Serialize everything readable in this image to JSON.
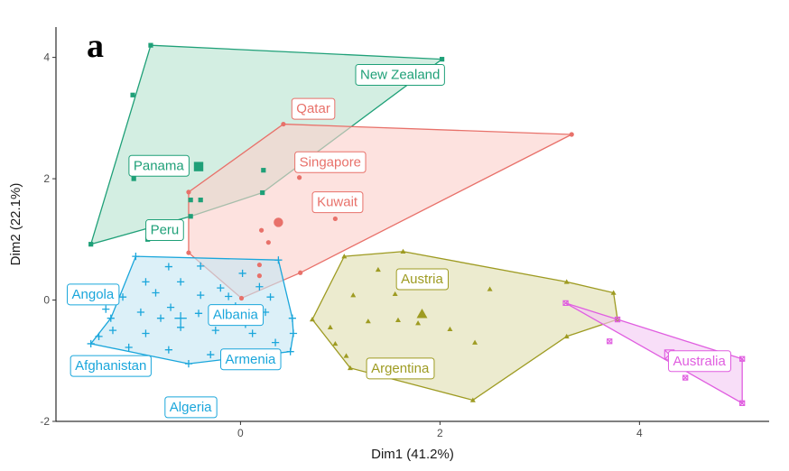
{
  "panel_letter": "a",
  "chart_data": {
    "type": "scatter",
    "title": "",
    "xlabel": "Dim1 (41.2%)",
    "ylabel": "Dim2 (22.1%)",
    "xlim": [
      -1.85,
      5.3
    ],
    "ylim": [
      -2.0,
      4.5
    ],
    "xticks": [
      0,
      2,
      4
    ],
    "yticks": [
      -2,
      0,
      2,
      4
    ],
    "grid": false,
    "legend": "none",
    "groups": [
      {
        "color": "#1fa078",
        "fill": "#b8e3d1",
        "marker": "square",
        "hull": [
          [
            -0.9,
            4.2
          ],
          [
            2.02,
            3.97
          ],
          [
            0.22,
            1.77
          ],
          [
            -0.5,
            1.38
          ],
          [
            -1.5,
            0.92
          ]
        ],
        "points": [
          [
            -0.9,
            4.2
          ],
          [
            2.02,
            3.97
          ],
          [
            -1.08,
            3.38
          ],
          [
            -1.07,
            2.0
          ],
          [
            -0.5,
            1.65
          ],
          [
            -0.4,
            1.65
          ],
          [
            0.23,
            2.14
          ],
          [
            0.22,
            1.77
          ],
          [
            -0.5,
            1.38
          ],
          [
            -0.93,
            1.0
          ],
          [
            -1.5,
            0.92
          ]
        ],
        "centroid": [
          -0.42,
          2.2
        ],
        "labels": [
          {
            "text": "New Zealand",
            "x": 1.6,
            "y": 3.72
          },
          {
            "text": "Panama",
            "x": -0.82,
            "y": 2.22
          },
          {
            "text": "Peru",
            "x": -0.76,
            "y": 1.16
          }
        ]
      },
      {
        "color": "#e8716a",
        "fill": "#fbd0cc",
        "marker": "circle",
        "hull": [
          [
            0.43,
            2.9
          ],
          [
            3.32,
            2.73
          ],
          [
            0.6,
            0.45
          ],
          [
            0.01,
            0.03
          ],
          [
            -0.52,
            0.78
          ],
          [
            -0.52,
            1.78
          ]
        ],
        "points": [
          [
            0.43,
            2.9
          ],
          [
            3.32,
            2.73
          ],
          [
            0.59,
            2.02
          ],
          [
            0.95,
            1.34
          ],
          [
            0.21,
            1.15
          ],
          [
            0.28,
            0.95
          ],
          [
            0.19,
            0.58
          ],
          [
            0.19,
            0.4
          ],
          [
            0.6,
            0.45
          ],
          [
            0.01,
            0.03
          ],
          [
            -0.52,
            0.78
          ],
          [
            -0.52,
            1.78
          ]
        ],
        "centroid": [
          0.38,
          1.28
        ],
        "labels": [
          {
            "text": "Qatar",
            "x": 0.73,
            "y": 3.16
          },
          {
            "text": "Singapore",
            "x": 0.9,
            "y": 2.28
          },
          {
            "text": "Kuwait",
            "x": 0.97,
            "y": 1.62
          }
        ]
      },
      {
        "color": "#1aa6db",
        "fill": "#c6e6f3",
        "marker": "plus",
        "hull": [
          [
            -1.05,
            0.72
          ],
          [
            0.38,
            0.66
          ],
          [
            0.52,
            -0.3
          ],
          [
            0.53,
            -0.55
          ],
          [
            0.5,
            -0.85
          ],
          [
            -0.52,
            -1.05
          ],
          [
            -1.5,
            -0.72
          ],
          [
            -1.3,
            -0.3
          ]
        ],
        "points": [
          [
            -1.05,
            0.72
          ],
          [
            0.38,
            0.66
          ],
          [
            0.52,
            -0.3
          ],
          [
            0.53,
            -0.55
          ],
          [
            0.5,
            -0.85
          ],
          [
            -0.52,
            -1.05
          ],
          [
            -1.5,
            -0.72
          ],
          [
            -1.3,
            -0.3
          ],
          [
            -0.72,
            0.55
          ],
          [
            -0.4,
            0.56
          ],
          [
            0.02,
            0.44
          ],
          [
            0.19,
            0.22
          ],
          [
            -0.95,
            0.3
          ],
          [
            -0.6,
            0.3
          ],
          [
            -0.2,
            0.2
          ],
          [
            0.3,
            0.05
          ],
          [
            -1.18,
            0.05
          ],
          [
            -0.85,
            0.12
          ],
          [
            -0.4,
            0.08
          ],
          [
            -0.12,
            0.06
          ],
          [
            -1.35,
            -0.15
          ],
          [
            -1.0,
            -0.2
          ],
          [
            -0.7,
            -0.12
          ],
          [
            -0.42,
            -0.22
          ],
          [
            -0.05,
            -0.1
          ],
          [
            0.25,
            -0.2
          ],
          [
            -1.28,
            -0.5
          ],
          [
            -0.95,
            -0.55
          ],
          [
            -0.6,
            -0.45
          ],
          [
            -0.25,
            -0.5
          ],
          [
            0.12,
            -0.55
          ],
          [
            0.35,
            -0.7
          ],
          [
            -1.12,
            -0.78
          ],
          [
            -0.72,
            -0.82
          ],
          [
            -0.3,
            -0.9
          ],
          [
            0.1,
            -0.95
          ],
          [
            -1.42,
            -0.6
          ],
          [
            -0.8,
            -0.3
          ],
          [
            -0.2,
            -0.3
          ],
          [
            0.05,
            -0.4
          ]
        ],
        "centroid": [
          -0.6,
          -0.3
        ],
        "labels": [
          {
            "text": "Angola",
            "x": -1.48,
            "y": 0.1
          },
          {
            "text": "Albania",
            "x": -0.05,
            "y": -0.24
          },
          {
            "text": "Armenia",
            "x": 0.1,
            "y": -0.97
          },
          {
            "text": "Afghanistan",
            "x": -1.3,
            "y": -1.08
          },
          {
            "text": "Algeria",
            "x": -0.5,
            "y": -1.76
          }
        ]
      },
      {
        "color": "#9e9b22",
        "fill": "#e1dfb1",
        "marker": "triangle",
        "hull": [
          [
            1.63,
            0.8
          ],
          [
            3.27,
            0.3
          ],
          [
            3.74,
            0.12
          ],
          [
            3.78,
            -0.32
          ],
          [
            3.27,
            -0.6
          ],
          [
            2.33,
            -1.65
          ],
          [
            1.1,
            -1.12
          ],
          [
            0.72,
            -0.32
          ],
          [
            1.04,
            0.72
          ]
        ],
        "points": [
          [
            1.63,
            0.8
          ],
          [
            3.27,
            0.3
          ],
          [
            3.74,
            0.12
          ],
          [
            3.78,
            -0.32
          ],
          [
            3.27,
            -0.6
          ],
          [
            2.33,
            -1.65
          ],
          [
            1.1,
            -1.12
          ],
          [
            0.72,
            -0.32
          ],
          [
            1.04,
            0.72
          ],
          [
            1.38,
            0.5
          ],
          [
            1.13,
            0.08
          ],
          [
            1.55,
            0.1
          ],
          [
            2.5,
            0.18
          ],
          [
            1.28,
            -0.35
          ],
          [
            1.58,
            -0.33
          ],
          [
            1.78,
            -0.38
          ],
          [
            0.9,
            -0.45
          ],
          [
            0.95,
            -0.72
          ],
          [
            2.1,
            -0.48
          ],
          [
            2.35,
            -0.7
          ],
          [
            1.06,
            -0.92
          ]
        ],
        "centroid": [
          1.82,
          -0.23
        ],
        "labels": [
          {
            "text": "Austria",
            "x": 1.82,
            "y": 0.35
          },
          {
            "text": "Argentina",
            "x": 1.6,
            "y": -1.12
          }
        ]
      },
      {
        "color": "#e05ee0",
        "fill": "#f4c9f4",
        "marker": "square-x",
        "hull": [
          [
            3.26,
            -0.05
          ],
          [
            3.78,
            -0.32
          ],
          [
            5.03,
            -0.97
          ],
          [
            5.03,
            -1.7
          ]
        ],
        "points": [
          [
            3.26,
            -0.05
          ],
          [
            3.78,
            -0.32
          ],
          [
            5.03,
            -0.97
          ],
          [
            5.03,
            -1.7
          ],
          [
            3.7,
            -0.68
          ],
          [
            4.46,
            -1.28
          ]
        ],
        "centroid": [
          4.3,
          -0.9
        ],
        "labels": [
          {
            "text": "Australia",
            "x": 4.6,
            "y": -1.0
          }
        ]
      }
    ]
  }
}
